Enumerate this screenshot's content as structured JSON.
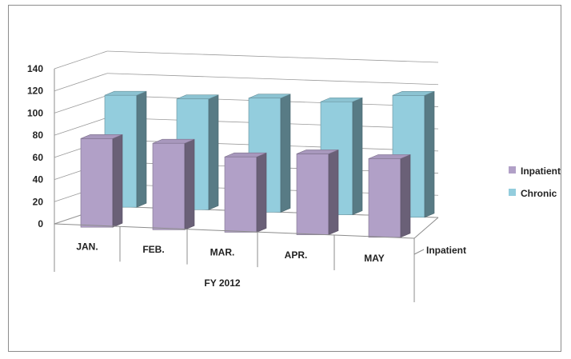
{
  "chart_data": {
    "type": "bar",
    "variant": "3d-clustered-depth",
    "categories": [
      "JAN.",
      "FEB.",
      "MAR.",
      "APR.",
      "MAY"
    ],
    "group_label": "FY 2012",
    "depth_label": "Inpatient",
    "series": [
      {
        "name": "Inpatient",
        "color": "#b1a0c7",
        "values": [
          80,
          78,
          68,
          73,
          71
        ]
      },
      {
        "name": "Chronic",
        "color": "#93cddd",
        "values": [
          101,
          100,
          103,
          102,
          110
        ]
      }
    ],
    "yticks": [
      "0",
      "20",
      "40",
      "60",
      "80",
      "100",
      "120",
      "140"
    ],
    "ylim": [
      0,
      140
    ],
    "grid": true,
    "legend_position": "right"
  }
}
